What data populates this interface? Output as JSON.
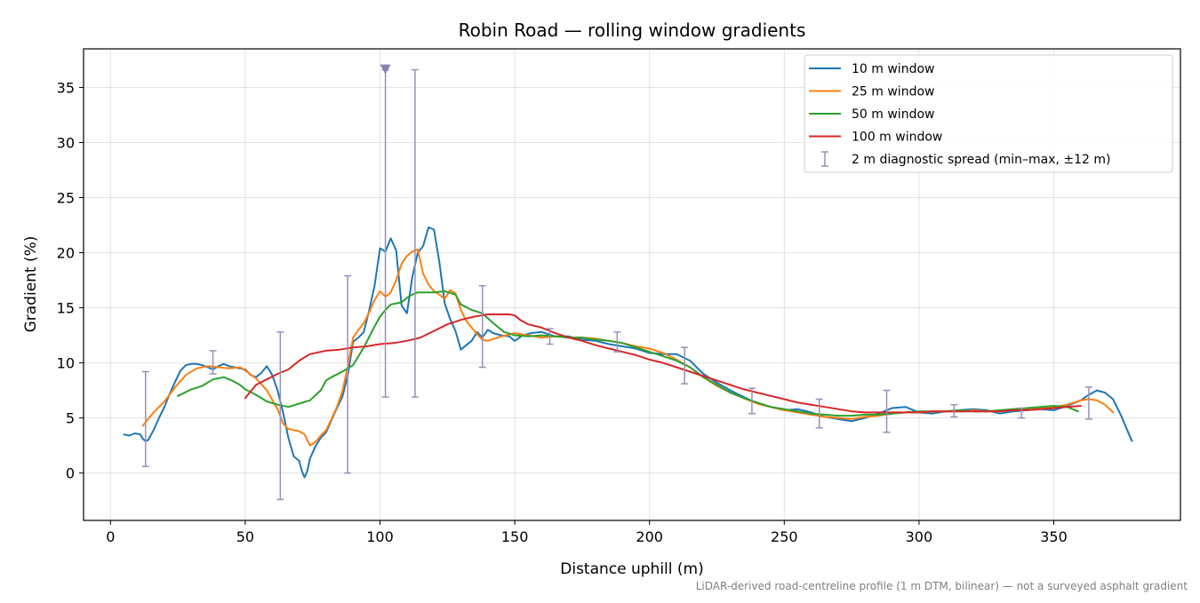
{
  "chart_data": {
    "type": "line",
    "title": "Robin Road — rolling window gradients",
    "xlabel": "Distance uphill (m)",
    "ylabel": "Gradient (%)",
    "xlim": [
      -10,
      397
    ],
    "ylim": [
      -4.3,
      38.5
    ],
    "xticks": [
      0,
      50,
      100,
      150,
      200,
      250,
      300,
      350
    ],
    "yticks": [
      0,
      5,
      10,
      15,
      20,
      25,
      30,
      35
    ],
    "grid": true,
    "legend_position": "top-right",
    "footnote": "LiDAR-derived road-centreline profile (1 m DTM, bilinear) — not a surveyed asphalt gradient",
    "series": [
      {
        "name": "10 m window",
        "color": "#1f77b4",
        "x": [
          5,
          7,
          9,
          11,
          12,
          13,
          14,
          16,
          18,
          20,
          22,
          24,
          26,
          28,
          30,
          32,
          34,
          36,
          38,
          40,
          42,
          44,
          46,
          48,
          50,
          52,
          54,
          56,
          58,
          60,
          62,
          64,
          66,
          68,
          70,
          71,
          72,
          73,
          74,
          76,
          78,
          80,
          82,
          84,
          86,
          88,
          90,
          92,
          94,
          96,
          98,
          100,
          102,
          104,
          106,
          108,
          110,
          112,
          114,
          116,
          118,
          120,
          122,
          124,
          126,
          128,
          130,
          132,
          134,
          136,
          138,
          140,
          142,
          145,
          148,
          150,
          153,
          156,
          160,
          165,
          170,
          175,
          180,
          185,
          190,
          195,
          200,
          205,
          210,
          215,
          220,
          225,
          230,
          235,
          240,
          245,
          250,
          255,
          260,
          265,
          270,
          275,
          280,
          285,
          290,
          295,
          300,
          305,
          310,
          315,
          320,
          325,
          330,
          335,
          340,
          345,
          350,
          355,
          360,
          363,
          366,
          369,
          372,
          375,
          379
        ],
        "y": [
          3.5,
          3.4,
          3.6,
          3.5,
          3.1,
          2.9,
          3.0,
          3.9,
          5.0,
          6.0,
          7.2,
          8.3,
          9.3,
          9.8,
          9.9,
          9.9,
          9.8,
          9.6,
          9.4,
          9.7,
          9.9,
          9.7,
          9.6,
          9.5,
          9.4,
          8.9,
          8.7,
          9.1,
          9.7,
          8.9,
          7.5,
          5.5,
          3.2,
          1.5,
          1.1,
          0.2,
          -0.4,
          0.2,
          1.3,
          2.4,
          3.2,
          3.7,
          4.8,
          5.9,
          6.9,
          8.8,
          11.9,
          12.3,
          12.8,
          14.8,
          17.0,
          20.4,
          20.1,
          21.3,
          20.2,
          15.2,
          14.5,
          17.8,
          20.0,
          20.6,
          22.3,
          22.1,
          19.2,
          15.4,
          14.0,
          12.9,
          11.2,
          11.6,
          12.0,
          12.8,
          12.3,
          13.0,
          12.7,
          12.5,
          12.4,
          12.0,
          12.5,
          12.7,
          12.8,
          12.4,
          12.4,
          12.1,
          12.0,
          11.7,
          11.5,
          11.3,
          10.9,
          10.8,
          10.8,
          10.2,
          9.0,
          8.2,
          7.5,
          6.9,
          6.3,
          6.0,
          5.7,
          5.8,
          5.5,
          5.1,
          4.9,
          4.7,
          5.0,
          5.4,
          5.9,
          6.0,
          5.5,
          5.4,
          5.6,
          5.7,
          5.8,
          5.7,
          5.4,
          5.6,
          5.7,
          5.8,
          5.7,
          6.1,
          6.6,
          7.1,
          7.5,
          7.3,
          6.7,
          5.2,
          2.9
        ]
      },
      {
        "name": "25 m window",
        "color": "#ff7f0e",
        "x": [
          12,
          16,
          20,
          24,
          28,
          32,
          36,
          40,
          44,
          48,
          50,
          54,
          58,
          62,
          64,
          66,
          68,
          70,
          72,
          74,
          76,
          78,
          80,
          82,
          84,
          86,
          88,
          90,
          92,
          94,
          96,
          98,
          100,
          102,
          104,
          106,
          108,
          110,
          112,
          114,
          116,
          118,
          120,
          122,
          124,
          126,
          128,
          130,
          132,
          134,
          136,
          138,
          140,
          145,
          150,
          155,
          160,
          165,
          170,
          175,
          180,
          185,
          190,
          195,
          200,
          205,
          210,
          215,
          220,
          225,
          230,
          235,
          240,
          245,
          250,
          255,
          260,
          265,
          270,
          275,
          280,
          285,
          290,
          295,
          300,
          305,
          310,
          315,
          320,
          325,
          330,
          335,
          340,
          345,
          350,
          355,
          360,
          363,
          366,
          369,
          372
        ],
        "y": [
          4.3,
          5.5,
          6.5,
          7.8,
          8.9,
          9.5,
          9.7,
          9.6,
          9.5,
          9.6,
          9.3,
          8.6,
          7.5,
          5.8,
          4.5,
          4.0,
          3.9,
          3.8,
          3.5,
          2.5,
          2.8,
          3.4,
          3.9,
          4.9,
          6.0,
          7.4,
          9.6,
          12.3,
          13.0,
          13.6,
          14.6,
          15.7,
          16.5,
          16.0,
          16.4,
          17.5,
          19.0,
          19.7,
          20.1,
          20.3,
          18.1,
          17.1,
          16.5,
          16.2,
          15.8,
          16.6,
          16.3,
          14.8,
          13.8,
          13.2,
          12.6,
          12.1,
          12.0,
          12.4,
          12.7,
          12.5,
          12.3,
          12.4,
          12.3,
          12.3,
          12.2,
          12.0,
          11.8,
          11.5,
          11.3,
          10.9,
          10.3,
          9.6,
          8.7,
          7.9,
          7.3,
          6.8,
          6.3,
          6.0,
          5.7,
          5.5,
          5.3,
          5.1,
          5.0,
          4.9,
          5.1,
          5.2,
          5.4,
          5.5,
          5.5,
          5.6,
          5.6,
          5.6,
          5.7,
          5.6,
          5.6,
          5.7,
          5.8,
          5.9,
          6.0,
          6.2,
          6.6,
          6.7,
          6.6,
          6.2,
          5.5
        ]
      },
      {
        "name": "50 m window",
        "color": "#2ca02c",
        "x": [
          25,
          30,
          34,
          38,
          40,
          42,
          45,
          48,
          50,
          54,
          58,
          62,
          66,
          70,
          74,
          78,
          80,
          82,
          86,
          90,
          94,
          98,
          100,
          102,
          104,
          106,
          108,
          110,
          112,
          114,
          116,
          118,
          120,
          124,
          128,
          130,
          134,
          138,
          142,
          146,
          150,
          155,
          160,
          165,
          170,
          175,
          180,
          185,
          190,
          195,
          200,
          205,
          210,
          215,
          220,
          225,
          230,
          235,
          240,
          245,
          250,
          255,
          260,
          265,
          270,
          275,
          280,
          285,
          290,
          295,
          300,
          305,
          310,
          315,
          320,
          325,
          330,
          335,
          340,
          345,
          350,
          355,
          359
        ],
        "y": [
          7.0,
          7.6,
          7.9,
          8.5,
          8.6,
          8.7,
          8.4,
          8.0,
          7.6,
          7.1,
          6.5,
          6.2,
          6.0,
          6.3,
          6.6,
          7.5,
          8.4,
          8.7,
          9.2,
          9.8,
          11.4,
          13.3,
          14.2,
          14.8,
          15.3,
          15.4,
          15.5,
          15.9,
          16.2,
          16.4,
          16.4,
          16.4,
          16.4,
          16.5,
          16.2,
          15.3,
          14.8,
          14.5,
          13.6,
          12.8,
          12.5,
          12.4,
          12.5,
          12.4,
          12.3,
          12.3,
          12.1,
          12.0,
          11.8,
          11.4,
          11.0,
          10.6,
          10.2,
          9.6,
          8.7,
          8.0,
          7.3,
          6.8,
          6.4,
          6.0,
          5.8,
          5.6,
          5.4,
          5.3,
          5.2,
          5.2,
          5.3,
          5.3,
          5.4,
          5.5,
          5.6,
          5.6,
          5.6,
          5.7,
          5.6,
          5.6,
          5.7,
          5.8,
          5.9,
          6.0,
          6.1,
          6.0,
          5.6
        ]
      },
      {
        "name": "100 m window",
        "color": "#d62728",
        "x": [
          50,
          54,
          58,
          62,
          66,
          70,
          74,
          78,
          80,
          85,
          90,
          95,
          100,
          105,
          110,
          115,
          120,
          125,
          130,
          135,
          140,
          145,
          148,
          150,
          152,
          155,
          160,
          165,
          170,
          175,
          180,
          185,
          190,
          195,
          200,
          205,
          210,
          215,
          220,
          225,
          230,
          235,
          240,
          245,
          250,
          255,
          260,
          265,
          270,
          275,
          280,
          285,
          290,
          295,
          300,
          305,
          310,
          315,
          320,
          325,
          330,
          335,
          340,
          345,
          350,
          355,
          360
        ],
        "y": [
          6.8,
          8.0,
          8.5,
          9.0,
          9.4,
          10.2,
          10.8,
          11.0,
          11.1,
          11.2,
          11.4,
          11.5,
          11.7,
          11.8,
          12.0,
          12.3,
          12.9,
          13.5,
          13.9,
          14.2,
          14.4,
          14.4,
          14.4,
          14.3,
          13.9,
          13.5,
          13.2,
          12.7,
          12.3,
          12.0,
          11.6,
          11.3,
          11.0,
          10.7,
          10.3,
          10.0,
          9.6,
          9.2,
          8.8,
          8.4,
          8.0,
          7.6,
          7.3,
          7.0,
          6.7,
          6.4,
          6.2,
          6.0,
          5.8,
          5.6,
          5.5,
          5.5,
          5.5,
          5.5,
          5.5,
          5.6,
          5.6,
          5.6,
          5.6,
          5.6,
          5.6,
          5.7,
          5.7,
          5.8,
          5.9,
          6.0,
          6.1
        ]
      }
    ],
    "errorbars": {
      "name": "2 m diagnostic spread (min–max, ±12 m)",
      "color": "#9890b8",
      "points": [
        {
          "x": 13,
          "ymin": 0.6,
          "ymax": 9.2
        },
        {
          "x": 38,
          "ymin": 9.0,
          "ymax": 11.1
        },
        {
          "x": 63,
          "ymin": -2.4,
          "ymax": 12.8
        },
        {
          "x": 88,
          "ymin": 0.0,
          "ymax": 17.9
        },
        {
          "x": 102,
          "ymin": 6.9,
          "ymax": 36.6
        },
        {
          "x": 113,
          "ymin": 6.9,
          "ymax": 36.6
        },
        {
          "x": 138,
          "ymin": 9.6,
          "ymax": 17.0
        },
        {
          "x": 163,
          "ymin": 11.7,
          "ymax": 13.1
        },
        {
          "x": 188,
          "ymin": 11.0,
          "ymax": 12.8
        },
        {
          "x": 213,
          "ymin": 8.1,
          "ymax": 11.4
        },
        {
          "x": 238,
          "ymin": 5.4,
          "ymax": 7.7
        },
        {
          "x": 263,
          "ymin": 4.1,
          "ymax": 6.7
        },
        {
          "x": 288,
          "ymin": 3.7,
          "ymax": 7.5
        },
        {
          "x": 313,
          "ymin": 5.1,
          "ymax": 6.2
        },
        {
          "x": 338,
          "ymin": 5.0,
          "ymax": 5.9
        },
        {
          "x": 363,
          "ymin": 4.9,
          "ymax": 7.8
        }
      ]
    },
    "clipped_marker": {
      "x": 102,
      "y": 36.6,
      "color": "#8a7fb0"
    }
  }
}
